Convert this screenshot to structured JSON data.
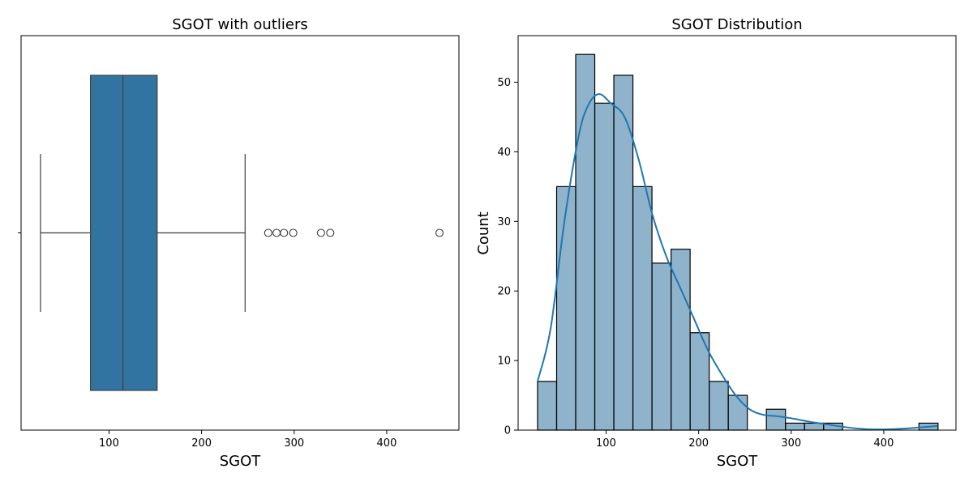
{
  "chart_data": [
    {
      "type": "box",
      "title": "SGOT with outliers",
      "xlabel": "SGOT",
      "xlim": [
        5,
        478
      ],
      "xticks": [
        100,
        200,
        300,
        400
      ],
      "ytick_label": "",
      "box": {
        "whisker_low": 26,
        "q1": 80,
        "median": 115,
        "q3": 152,
        "whisker_high": 247
      },
      "outliers": [
        272,
        281,
        289,
        299,
        329,
        339,
        457
      ],
      "color": "#3274a1"
    },
    {
      "type": "histogram",
      "title": "SGOT Distribution",
      "xlabel": "SGOT",
      "ylabel": "Count",
      "xlim": [
        5,
        478
      ],
      "ylim": [
        0,
        56.7
      ],
      "xticks": [
        100,
        200,
        300,
        400
      ],
      "yticks": [
        0,
        10,
        20,
        30,
        40,
        50
      ],
      "bin_edges": [
        26,
        46.6,
        67.2,
        87.8,
        108.4,
        129.0,
        149.6,
        170.2,
        190.8,
        211.4,
        232.0,
        252.6,
        273.2,
        293.8,
        314.4,
        335.0,
        355.6,
        376.2,
        396.8,
        417.4,
        438.0,
        458.6
      ],
      "counts": [
        7,
        35,
        54,
        47,
        51,
        35,
        24,
        26,
        14,
        7,
        5,
        0,
        3,
        1,
        1,
        1,
        0,
        0,
        0,
        0,
        1
      ],
      "kde": {
        "x": [
          26,
          40,
          55,
          70,
          80,
          92,
          105,
          120,
          135,
          150,
          165,
          180,
          195,
          210,
          225,
          240,
          255,
          270,
          285,
          300,
          320,
          340,
          360,
          380,
          400,
          420,
          440,
          458
        ],
        "y": [
          7.0,
          14.5,
          30.0,
          42.0,
          46.5,
          48.3,
          47.0,
          45.0,
          39.0,
          31.0,
          25.0,
          20.5,
          16.0,
          11.5,
          8.0,
          5.0,
          3.0,
          2.2,
          2.0,
          1.7,
          1.2,
          0.8,
          0.4,
          0.15,
          0.1,
          0.2,
          0.4,
          0.6
        ]
      },
      "color": "#3274a1"
    }
  ]
}
